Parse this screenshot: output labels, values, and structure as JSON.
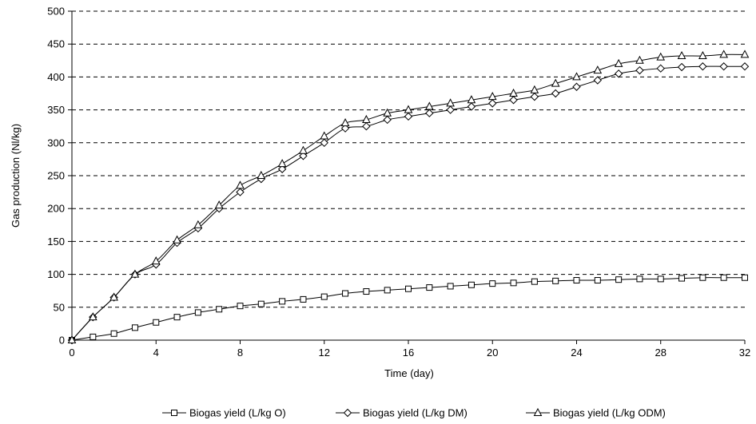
{
  "chart_data": {
    "type": "line",
    "xlabel": "Time (day)",
    "ylabel": "Gas production (Nl/kg)",
    "xlim": [
      0,
      32
    ],
    "ylim": [
      0,
      500
    ],
    "x_ticks": [
      0,
      4,
      8,
      12,
      16,
      20,
      24,
      28,
      32
    ],
    "y_ticks": [
      0,
      50,
      100,
      150,
      200,
      250,
      300,
      350,
      400,
      450,
      500
    ],
    "grid": "horizontal dashed",
    "legend_position": "bottom",
    "x": [
      0,
      1,
      2,
      3,
      4,
      5,
      6,
      7,
      8,
      9,
      10,
      11,
      12,
      13,
      14,
      15,
      16,
      17,
      18,
      19,
      20,
      21,
      22,
      23,
      24,
      25,
      26,
      27,
      28,
      29,
      30,
      31,
      32
    ],
    "series": [
      {
        "name": "Biogas yield (L/kg O)",
        "marker": "square",
        "values": [
          0,
          5,
          10,
          19,
          27,
          35,
          42,
          47,
          52,
          55,
          59,
          62,
          66,
          71,
          74,
          76,
          78,
          80,
          82,
          84,
          86,
          87,
          89,
          90,
          91,
          91,
          92,
          93,
          93,
          94,
          95,
          95,
          95
        ]
      },
      {
        "name": "Biogas yield (L/kg DM)",
        "marker": "diamond",
        "values": [
          0,
          35,
          65,
          100,
          115,
          148,
          170,
          200,
          225,
          245,
          260,
          280,
          300,
          322,
          325,
          335,
          340,
          345,
          350,
          355,
          360,
          365,
          370,
          375,
          385,
          395,
          405,
          410,
          413,
          415,
          416,
          416,
          416
        ]
      },
      {
        "name": "Biogas yield (L/kg ODM)",
        "marker": "triangle",
        "values": [
          0,
          35,
          65,
          100,
          120,
          152,
          175,
          205,
          235,
          250,
          268,
          288,
          310,
          330,
          335,
          345,
          350,
          355,
          360,
          365,
          370,
          375,
          380,
          390,
          400,
          410,
          420,
          425,
          430,
          432,
          432,
          434,
          434
        ]
      }
    ],
    "colors": {
      "line": "#000000",
      "grid": "#000000",
      "marker_fill": "#ffffff"
    }
  }
}
